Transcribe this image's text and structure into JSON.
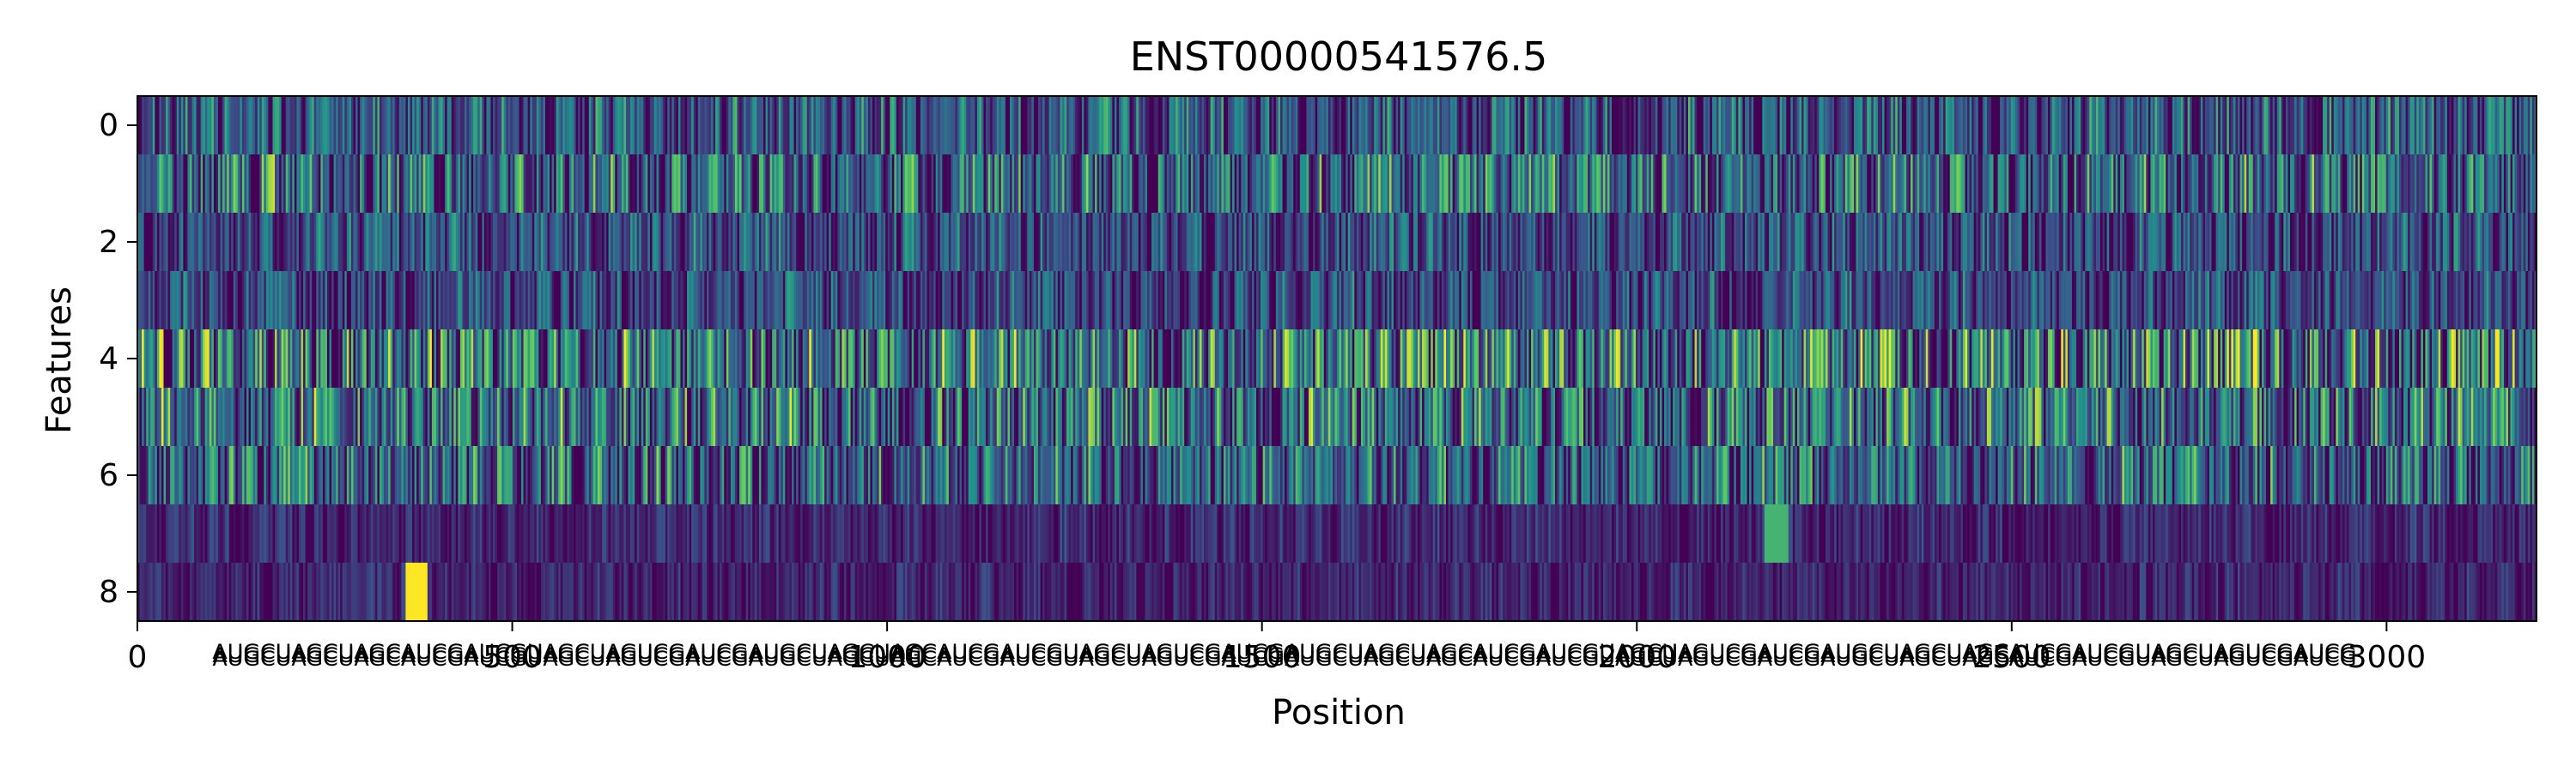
{
  "chart_data": {
    "type": "heatmap",
    "title": "ENST00000541576.5",
    "xlabel": "Position",
    "ylabel": "Features",
    "xlim": [
      0,
      3200
    ],
    "ylim": [
      8.5,
      -0.5
    ],
    "colormap": "viridis",
    "colors": [
      "#440154",
      "#3b528b",
      "#21918c",
      "#5ec962",
      "#fde725"
    ],
    "x_ticks": [
      0,
      500,
      1000,
      1500,
      2000,
      2500,
      3000
    ],
    "x_tick_labels": [
      "0",
      "500",
      "1000",
      "1500",
      "2000",
      "2500",
      "3000"
    ],
    "y_ticks": [
      0,
      2,
      4,
      6,
      8
    ],
    "y_tick_labels": [
      "0",
      "2",
      "4",
      "6",
      "8"
    ],
    "rows": [
      0,
      1,
      2,
      3,
      4,
      5,
      6,
      7,
      8
    ],
    "columns": 3200,
    "row_activity": [
      0.5,
      0.62,
      0.42,
      0.4,
      0.72,
      0.66,
      0.58,
      0.2,
      0.18
    ],
    "highlights": [
      {
        "row": 8,
        "x_start": 355,
        "x_end": 385,
        "value": 1.0
      },
      {
        "row": 7,
        "x_start": 2170,
        "x_end": 2200,
        "value": 0.65
      }
    ],
    "dense_tick_range": [
      100,
      2960
    ],
    "dense_tick_text": "AUGCUAGCUAGCAUCGAUCGUAGCUAGUCGAUCGAUGCUAGCUAGCAUCGAUCGUAGCUAGUCGAUCGAUGCUAGCUAGCAUCGAUCGUAGCUAGUCGAUCGAUGCUAGCUAGCAUCGAUCGUAGCUAGUCGAUCG"
  }
}
